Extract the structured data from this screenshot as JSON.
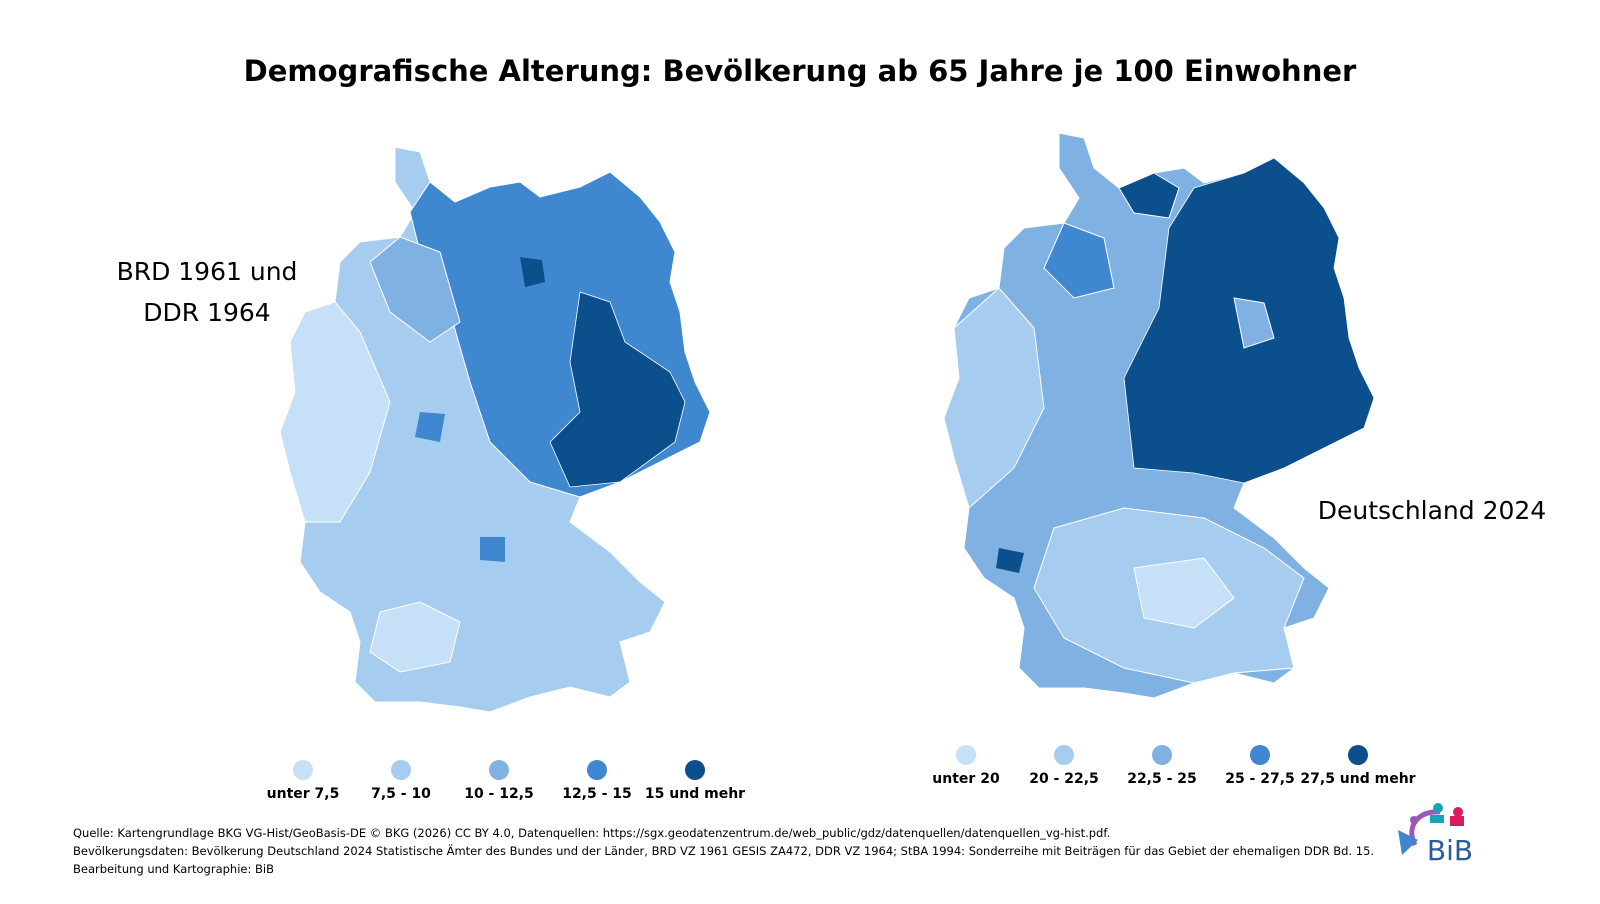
{
  "title": "Demografische Alterung: Bevölkerung ab 65 Jahre je 100 Einwohner",
  "maps": [
    {
      "label": [
        "BRD 1961 und",
        "DDR 1964"
      ],
      "legend": [
        {
          "label": "unter 7,5",
          "color": "#c6e0f7"
        },
        {
          "label": "7,5 - 10",
          "color": "#a6cdf0"
        },
        {
          "label": "10 - 12,5",
          "color": "#7fb2e3"
        },
        {
          "label": "12,5 - 15",
          "color": "#3f87cf"
        },
        {
          "label": "15 und mehr",
          "color": "#0b4f8c"
        }
      ]
    },
    {
      "label": [
        "Deutschland 2024"
      ],
      "legend": [
        {
          "label": "unter 20",
          "color": "#c6e0f7"
        },
        {
          "label": "20 - 22,5",
          "color": "#a6cdf0"
        },
        {
          "label": "22,5 - 25",
          "color": "#7fb2e3"
        },
        {
          "label": "25 - 27,5",
          "color": "#3f87cf"
        },
        {
          "label": "27,5 und mehr",
          "color": "#0b4f8c"
        }
      ]
    }
  ],
  "source": [
    "Quelle: Kartengrundlage BKG VG-Hist/GeoBasis-DE © BKG (2026) CC BY 4.0, Datenquellen: https://sgx.geodatenzentrum.de/web_public/gdz/datenquellen/datenquellen_vg-hist.pdf.",
    "Bevölkerungsdaten: Bevölkerung Deutschland 2024 Statistische Ämter des Bundes und der Länder, BRD VZ 1961 GESIS ZA472, DDR VZ 1964; StBA 1994: Sonderreihe mit Beiträgen für das Gebiet der ehemaligen DDR Bd. 15.",
    "Bearbeitung und Kartographie: BiB"
  ],
  "logo": "BiB"
}
